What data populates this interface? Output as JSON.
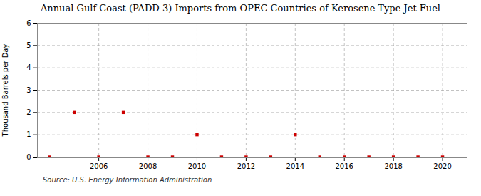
{
  "chart_data": {
    "type": "scatter",
    "title": "Annual Gulf Coast (PADD 3) Imports from OPEC Countries of Kerosene-Type Jet Fuel",
    "ylabel": "Thousand Barrels per Day",
    "annotations": [
      "Source: U.S. Energy Information Administration"
    ],
    "x": [
      2004,
      2005,
      2006,
      2007,
      2008,
      2009,
      2010,
      2011,
      2012,
      2013,
      2014,
      2015,
      2016,
      2017,
      2018,
      2019,
      2020
    ],
    "values": [
      0,
      2,
      0,
      2,
      0,
      0,
      1,
      0,
      0,
      0,
      1,
      0,
      0,
      0,
      0,
      0,
      0
    ],
    "color": "#cc0000",
    "marker": "square",
    "xlim": [
      2003.5,
      2021.0
    ],
    "ylim": [
      0,
      6
    ],
    "xticks": [
      2006,
      2008,
      2010,
      2012,
      2014,
      2016,
      2018,
      2020
    ],
    "yticks": [
      0,
      1,
      2,
      3,
      4,
      5,
      6
    ],
    "grid": true
  }
}
